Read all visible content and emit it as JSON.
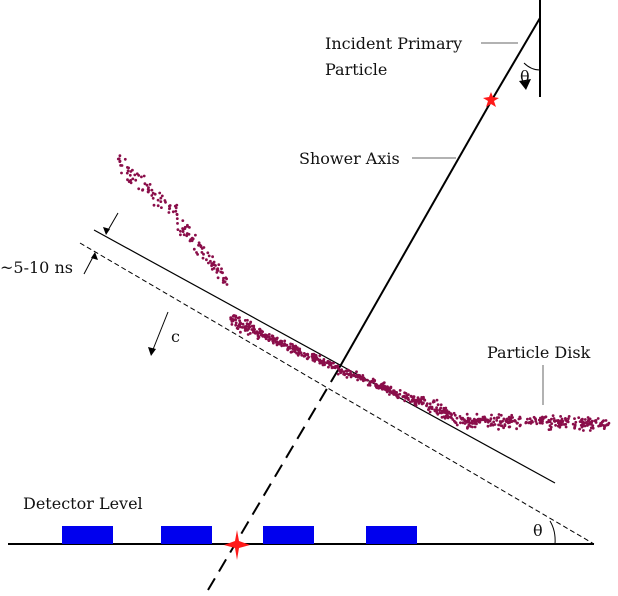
{
  "labels": {
    "incident_line1": "Incident Primary",
    "incident_line2": "Particle",
    "theta_top": "θ",
    "shower_axis": "Shower Axis",
    "time_spread": "~5-10 ns",
    "speed": "c",
    "particle_disk": "Particle Disk",
    "detector_level": "Detector Level",
    "theta_bottom": "θ"
  },
  "colors": {
    "line": "#000000",
    "particles": "#8a0e4a",
    "detectors": "#0000ee",
    "star": "#ff1a1a",
    "leader": "#777777"
  },
  "detector_count": 4
}
